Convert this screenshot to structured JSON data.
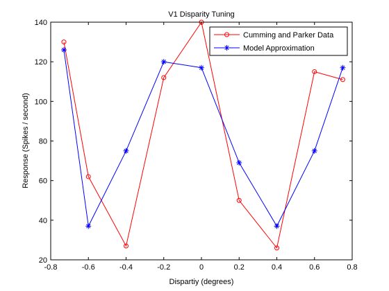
{
  "chart_data": {
    "type": "line",
    "title": "V1 Disparity Tuning",
    "xlabel": "Dispartiy (degrees)",
    "ylabel": "Response (Spikes / second)",
    "xlim": [
      -0.8,
      0.8
    ],
    "ylim": [
      20,
      140
    ],
    "xticks": [
      -0.8,
      -0.6,
      -0.4,
      -0.2,
      0,
      0.2,
      0.4,
      0.6,
      0.8
    ],
    "xtick_labels": [
      "-0.8",
      "-0.6",
      "-0.4",
      "-0.2",
      "0",
      "0.2",
      "0.4",
      "0.6",
      "0.8"
    ],
    "yticks": [
      20,
      40,
      60,
      80,
      100,
      120,
      140
    ],
    "ytick_labels": [
      "20",
      "40",
      "60",
      "80",
      "100",
      "120",
      "140"
    ],
    "grid": false,
    "legend_position": "top-right",
    "series": [
      {
        "name": "Cumming and Parker Data",
        "color": "#ff0000",
        "marker": "circle",
        "x": [
          -0.73,
          -0.6,
          -0.4,
          -0.2,
          0,
          0.2,
          0.4,
          0.6,
          0.75
        ],
        "y": [
          130,
          62,
          27,
          112,
          140,
          50,
          26,
          115,
          111
        ]
      },
      {
        "name": "Model Approximation",
        "color": "#0000ff",
        "marker": "asterisk",
        "x": [
          -0.73,
          -0.6,
          -0.4,
          -0.2,
          0,
          0.2,
          0.4,
          0.6,
          0.75
        ],
        "y": [
          126,
          37,
          75,
          120,
          117,
          69,
          37,
          75,
          117
        ]
      }
    ]
  }
}
